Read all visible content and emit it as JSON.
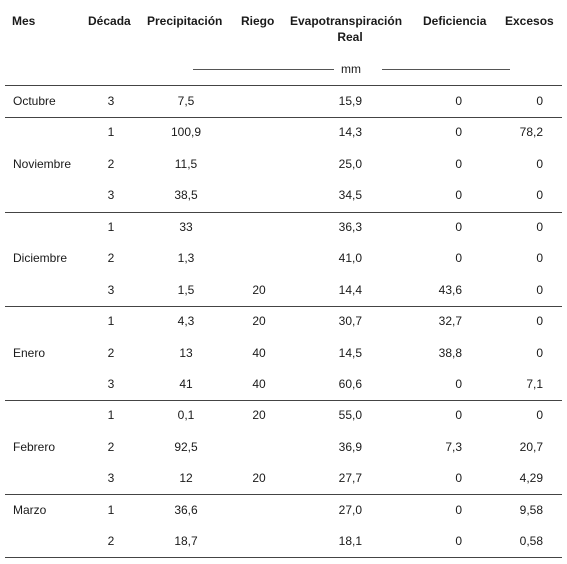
{
  "table": {
    "headers": {
      "mes": "Mes",
      "decada": "Década",
      "precipitacion": "Precipitación",
      "riego": "Riego",
      "evapo_line1": "Evapotranspiración",
      "evapo_line2": "Real",
      "deficiencia": "Deficiencia",
      "excesos": "Excesos"
    },
    "units": "mm",
    "months": [
      "Octubre",
      "Noviembre",
      "Diciembre",
      "Enero",
      "Febrero",
      "Marzo"
    ],
    "rows": [
      {
        "decada": "3",
        "precip": "7,5",
        "riego": "",
        "etr": "15,9",
        "def": "0",
        "exc": "0"
      },
      {
        "decada": "1",
        "precip": "100,9",
        "riego": "",
        "etr": "14,3",
        "def": "0",
        "exc": "78,2"
      },
      {
        "decada": "2",
        "precip": "11,5",
        "riego": "",
        "etr": "25,0",
        "def": "0",
        "exc": "0"
      },
      {
        "decada": "3",
        "precip": "38,5",
        "riego": "",
        "etr": "34,5",
        "def": "0",
        "exc": "0"
      },
      {
        "decada": "1",
        "precip": "33",
        "riego": "",
        "etr": "36,3",
        "def": "0",
        "exc": "0"
      },
      {
        "decada": "2",
        "precip": "1,3",
        "riego": "",
        "etr": "41,0",
        "def": "0",
        "exc": "0"
      },
      {
        "decada": "3",
        "precip": "1,5",
        "riego": "20",
        "etr": "14,4",
        "def": "43,6",
        "exc": "0"
      },
      {
        "decada": "1",
        "precip": "4,3",
        "riego": "20",
        "etr": "30,7",
        "def": "32,7",
        "exc": "0"
      },
      {
        "decada": "2",
        "precip": "13",
        "riego": "40",
        "etr": "14,5",
        "def": "38,8",
        "exc": "0"
      },
      {
        "decada": "3",
        "precip": "41",
        "riego": "40",
        "etr": "60,6",
        "def": "0",
        "exc": "7,1"
      },
      {
        "decada": "1",
        "precip": "0,1",
        "riego": "20",
        "etr": "55,0",
        "def": "0",
        "exc": "0"
      },
      {
        "decada": "2",
        "precip": "92,5",
        "riego": "",
        "etr": "36,9",
        "def": "7,3",
        "exc": "20,7"
      },
      {
        "decada": "3",
        "precip": "12",
        "riego": "20",
        "etr": "27,7",
        "def": "0",
        "exc": "4,29"
      },
      {
        "decada": "1",
        "precip": "36,6",
        "riego": "",
        "etr": "27,0",
        "def": "0",
        "exc": "9,58"
      },
      {
        "decada": "2",
        "precip": "18,7",
        "riego": "",
        "etr": "18,1",
        "def": "0",
        "exc": "0,58"
      }
    ]
  }
}
